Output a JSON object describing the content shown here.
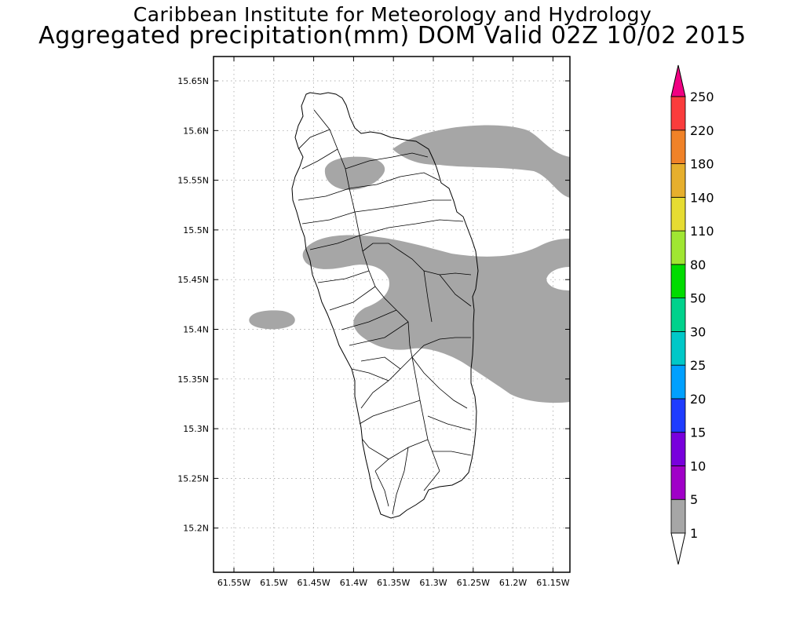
{
  "title_line1": "Caribbean Institute for Meteorology and Hydrology",
  "title_line2": "Aggregated precipitation(mm) DOM Valid 02Z 10/02 2015",
  "map": {
    "lat_labels": [
      "15.65N",
      "15.6N",
      "15.55N",
      "15.5N",
      "15.45N",
      "15.4N",
      "15.35N",
      "15.3N",
      "15.25N",
      "15.2N"
    ],
    "lon_labels": [
      "61.55W",
      "61.5W",
      "61.45W",
      "61.4W",
      "61.35W",
      "61.3W",
      "61.25W",
      "61.2W",
      "61.15W"
    ],
    "precip_fill_color": "#a6a6a6",
    "coast_color": "#000000"
  },
  "colorbar": {
    "levels": [
      "1",
      "5",
      "10",
      "15",
      "20",
      "25",
      "30",
      "50",
      "80",
      "110",
      "140",
      "180",
      "220",
      "250"
    ],
    "colors": [
      "#a6a6a6",
      "#a000c8",
      "#7800dc",
      "#1e3cff",
      "#00a0ff",
      "#00c8c8",
      "#00d28c",
      "#00dc00",
      "#a0e632",
      "#e6dc32",
      "#e6af2d",
      "#f08228",
      "#fa3c3c",
      "#f00082"
    ]
  }
}
